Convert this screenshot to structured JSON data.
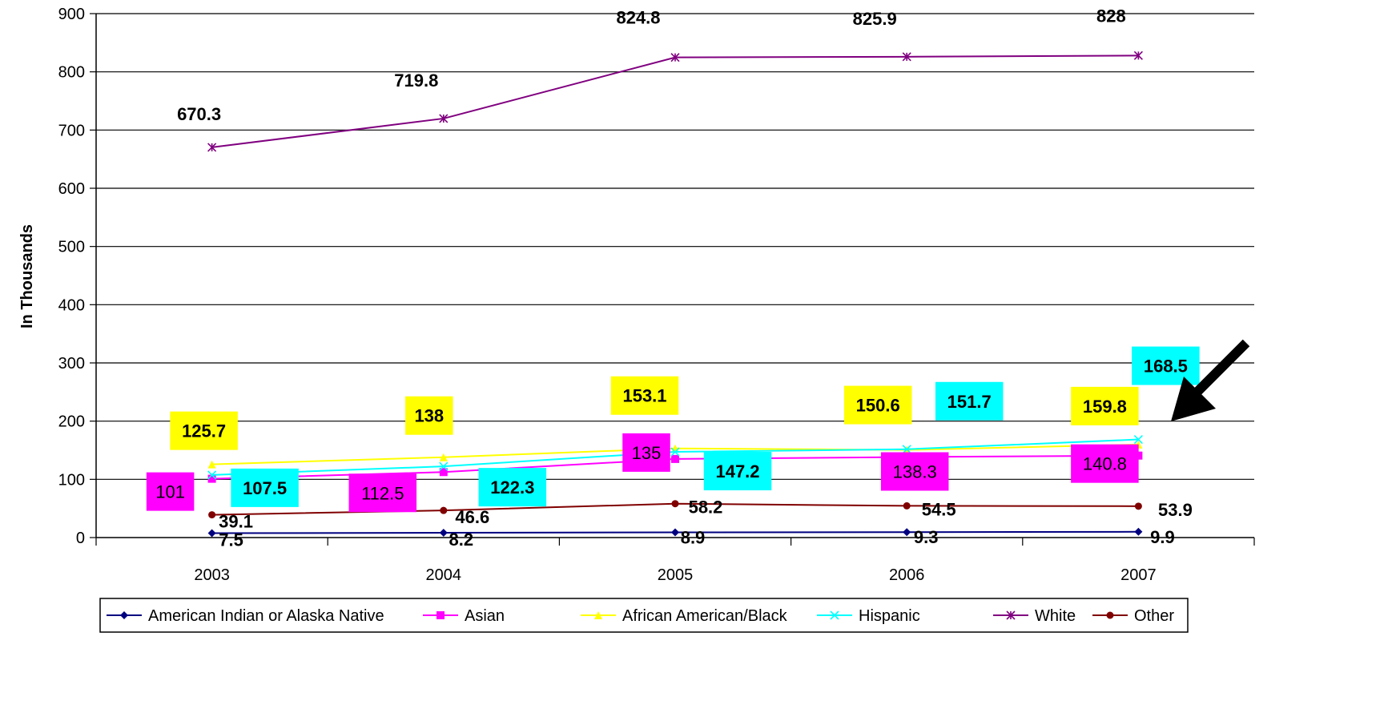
{
  "chart_data": {
    "type": "line",
    "categories": [
      "2003",
      "2004",
      "2005",
      "2006",
      "2007"
    ],
    "ylabel": "In Thousands",
    "ylim": [
      0,
      900
    ],
    "yticks": [
      0,
      100,
      200,
      300,
      400,
      500,
      600,
      700,
      800,
      900
    ],
    "grid": true,
    "legend_position": "bottom",
    "series": [
      {
        "name": "American Indian or Alaska Native",
        "values": [
          7.5,
          8.2,
          8.9,
          9.3,
          9.9
        ],
        "labels": [
          "7.5",
          "8.2",
          "8.9",
          "9.3",
          "9.9"
        ],
        "color": "#000080",
        "marker": "diamond"
      },
      {
        "name": "Asian",
        "values": [
          101,
          112.5,
          135,
          138.3,
          140.8
        ],
        "labels": [
          "101",
          "112.5",
          "135",
          "138.3",
          "140.8"
        ],
        "color": "#ff00ff",
        "marker": "square",
        "label_bg": "#ff00ff"
      },
      {
        "name": "African American/Black",
        "values": [
          125.7,
          138,
          153.1,
          150.6,
          159.8
        ],
        "labels": [
          "125.7",
          "138",
          "153.1",
          "150.6",
          "159.8"
        ],
        "color": "#ffff00",
        "marker": "triangle",
        "label_bg": "#ffff00"
      },
      {
        "name": "Hispanic",
        "values": [
          107.5,
          122.3,
          147.2,
          151.7,
          168.5
        ],
        "labels": [
          "107.5",
          "122.3",
          "147.2",
          "151.7",
          "168.5"
        ],
        "color": "#00ffff",
        "marker": "x",
        "label_bg": "#00ffff"
      },
      {
        "name": "White",
        "values": [
          670.3,
          719.8,
          824.8,
          825.9,
          828
        ],
        "labels": [
          "670.3",
          "719.8",
          "824.8",
          "825.9",
          "828"
        ],
        "color": "#800080",
        "marker": "star"
      },
      {
        "name": "Other",
        "values": [
          39.1,
          46.6,
          58.2,
          54.5,
          53.9
        ],
        "labels": [
          "39.1",
          "46.6",
          "58.2",
          "54.5",
          "53.9"
        ],
        "color": "#800000",
        "marker": "circle"
      }
    ],
    "annotations": [
      {
        "type": "arrow",
        "points_to": "Hispanic 2007",
        "color": "#000000"
      }
    ]
  }
}
